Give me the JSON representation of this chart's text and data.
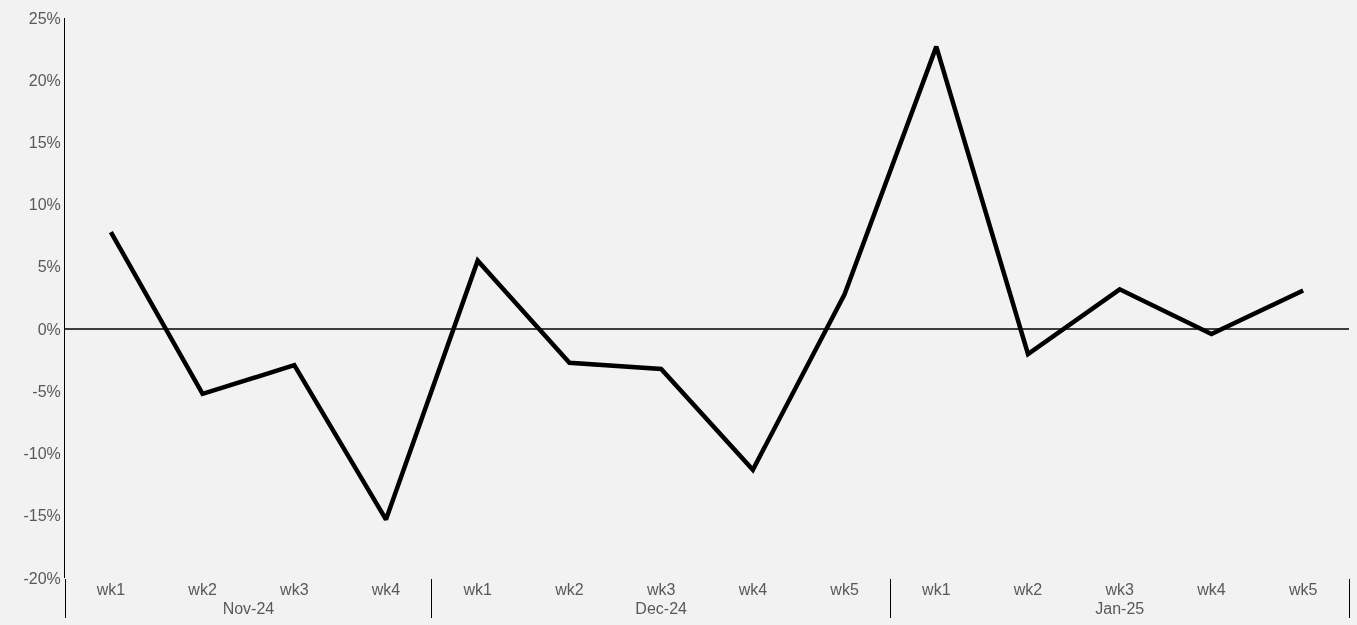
{
  "chart_data": {
    "type": "line",
    "categories": [
      "wk1",
      "wk2",
      "wk3",
      "wk4",
      "wk1",
      "wk2",
      "wk3",
      "wk4",
      "wk5",
      "wk1",
      "wk2",
      "wk3",
      "wk4",
      "wk5"
    ],
    "annotations": [
      "Nov-24",
      "Dec-24",
      "Jan-25"
    ],
    "series": [
      {
        "color": "#000000",
        "values": [
          7.8,
          -5.2,
          -2.9,
          -15.3,
          5.5,
          -2.7,
          -3.2,
          -11.3,
          2.8,
          22.7,
          -2.0,
          3.2,
          -0.4,
          3.1
        ]
      }
    ],
    "ylim": [
      -20,
      25
    ],
    "yticks": [
      {
        "value": -20,
        "label": "-20%"
      },
      {
        "value": -15,
        "label": "-15%"
      },
      {
        "value": -10,
        "label": "-10%"
      },
      {
        "value": -5,
        "label": "-5%"
      },
      {
        "value": 0,
        "label": "0%"
      },
      {
        "value": 5,
        "label": "5%"
      },
      {
        "value": 10,
        "label": "10%"
      },
      {
        "value": 15,
        "label": "15%"
      },
      {
        "value": 20,
        "label": "20%"
      },
      {
        "value": 25,
        "label": "25%"
      }
    ],
    "ref_lines": [
      {
        "axis": "y",
        "value": 0,
        "color": "#000000"
      }
    ],
    "grid": false,
    "legend": false,
    "marker": "none",
    "line_style": "solid"
  }
}
